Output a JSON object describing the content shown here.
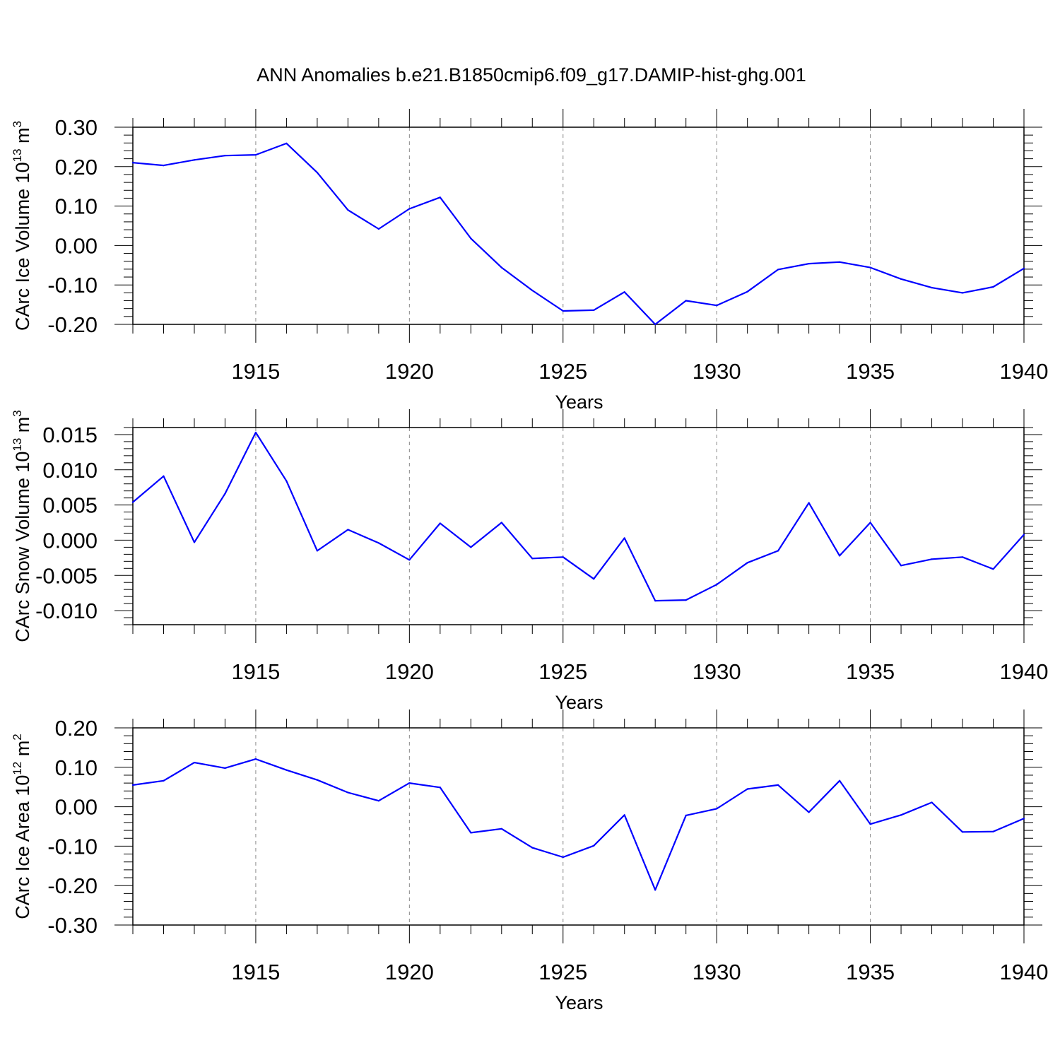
{
  "figure": {
    "title": "ANN Anomalies b.e21.B1850cmip6.f09_g17.DAMIP-hist-ghg.001",
    "line_color": "#0000ff"
  },
  "chart_data": [
    {
      "type": "line",
      "ylabel": "CArc Ice Volume 10",
      "ylabel_exp": "13",
      "ylabel_unit": " m",
      "ylabel_unit_exp": "3",
      "xlabel": "Years",
      "xlim": [
        1911,
        1940
      ],
      "ylim": [
        -0.2,
        0.3
      ],
      "yticks": [
        -0.2,
        -0.1,
        0.0,
        0.1,
        0.2,
        0.3
      ],
      "ytick_labels": [
        "-0.20",
        "-0.10",
        "0.00",
        "0.10",
        "0.20",
        "0.30"
      ],
      "xticks": [
        1915,
        1920,
        1925,
        1930,
        1935,
        1940
      ],
      "xtick_labels": [
        "1915",
        "1920",
        "1925",
        "1930",
        "1935",
        "1940"
      ],
      "grid": "vertical-dashed-at-major-x",
      "x": [
        1911,
        1912,
        1913,
        1914,
        1915,
        1916,
        1917,
        1918,
        1919,
        1920,
        1921,
        1922,
        1923,
        1924,
        1925,
        1926,
        1927,
        1928,
        1929,
        1930,
        1931,
        1932,
        1933,
        1934,
        1935,
        1936,
        1937,
        1938,
        1939,
        1940
      ],
      "values": [
        0.21,
        0.203,
        0.217,
        0.228,
        0.23,
        0.259,
        0.185,
        0.09,
        0.042,
        0.093,
        0.122,
        0.018,
        -0.056,
        -0.114,
        -0.166,
        -0.164,
        -0.118,
        -0.2,
        -0.14,
        -0.152,
        -0.117,
        -0.061,
        -0.046,
        -0.042,
        -0.056,
        -0.085,
        -0.107,
        -0.12,
        -0.105,
        -0.058
      ]
    },
    {
      "type": "line",
      "ylabel": "CArc Snow Volume 10",
      "ylabel_exp": "13",
      "ylabel_unit": " m",
      "ylabel_unit_exp": "3",
      "xlabel": "Years",
      "xlim": [
        1911,
        1940
      ],
      "ylim": [
        -0.012,
        0.016
      ],
      "yticks": [
        -0.01,
        -0.005,
        0.0,
        0.005,
        0.01,
        0.015
      ],
      "ytick_labels": [
        "-0.010",
        "-0.005",
        "0.000",
        "0.005",
        "0.010",
        "0.015"
      ],
      "xticks": [
        1915,
        1920,
        1925,
        1930,
        1935,
        1940
      ],
      "xtick_labels": [
        "1915",
        "1920",
        "1925",
        "1930",
        "1935",
        "1940"
      ],
      "grid": "vertical-dashed-at-major-x",
      "x": [
        1911,
        1912,
        1913,
        1914,
        1915,
        1916,
        1917,
        1918,
        1919,
        1920,
        1921,
        1922,
        1923,
        1924,
        1925,
        1926,
        1927,
        1928,
        1929,
        1930,
        1931,
        1932,
        1933,
        1934,
        1935,
        1936,
        1937,
        1938,
        1939,
        1940
      ],
      "values": [
        0.0054,
        0.0091,
        -0.0003,
        0.0066,
        0.0153,
        0.0084,
        -0.0015,
        0.0015,
        -0.0004,
        -0.0028,
        0.0024,
        -0.001,
        0.0025,
        -0.0026,
        -0.0024,
        -0.0055,
        0.0003,
        -0.0086,
        -0.0085,
        -0.0063,
        -0.0032,
        -0.0015,
        0.0053,
        -0.0022,
        0.0025,
        -0.0036,
        -0.0027,
        -0.0024,
        -0.0041,
        0.0008
      ]
    },
    {
      "type": "line",
      "ylabel": "CArc Ice Area 10",
      "ylabel_exp": "12",
      "ylabel_unit": " m",
      "ylabel_unit_exp": "2",
      "xlabel": "Years",
      "xlim": [
        1911,
        1940
      ],
      "ylim": [
        -0.3,
        0.2
      ],
      "yticks": [
        -0.3,
        -0.2,
        -0.1,
        0.0,
        0.1,
        0.2
      ],
      "ytick_labels": [
        "-0.30",
        "-0.20",
        "-0.10",
        "0.00",
        "0.10",
        "0.20"
      ],
      "xticks": [
        1915,
        1920,
        1925,
        1930,
        1935,
        1940
      ],
      "xtick_labels": [
        "1915",
        "1920",
        "1925",
        "1930",
        "1935",
        "1940"
      ],
      "grid": "vertical-dashed-at-major-x",
      "x": [
        1911,
        1912,
        1913,
        1914,
        1915,
        1916,
        1917,
        1918,
        1919,
        1920,
        1921,
        1922,
        1923,
        1924,
        1925,
        1926,
        1927,
        1928,
        1929,
        1930,
        1931,
        1932,
        1933,
        1934,
        1935,
        1936,
        1937,
        1938,
        1939,
        1940
      ],
      "values": [
        0.055,
        0.066,
        0.112,
        0.098,
        0.121,
        0.093,
        0.068,
        0.036,
        0.015,
        0.06,
        0.049,
        -0.066,
        -0.056,
        -0.104,
        -0.128,
        -0.099,
        -0.021,
        -0.211,
        -0.022,
        -0.005,
        0.045,
        0.055,
        -0.014,
        0.066,
        -0.044,
        -0.021,
        0.011,
        -0.064,
        -0.063,
        -0.03
      ]
    }
  ]
}
